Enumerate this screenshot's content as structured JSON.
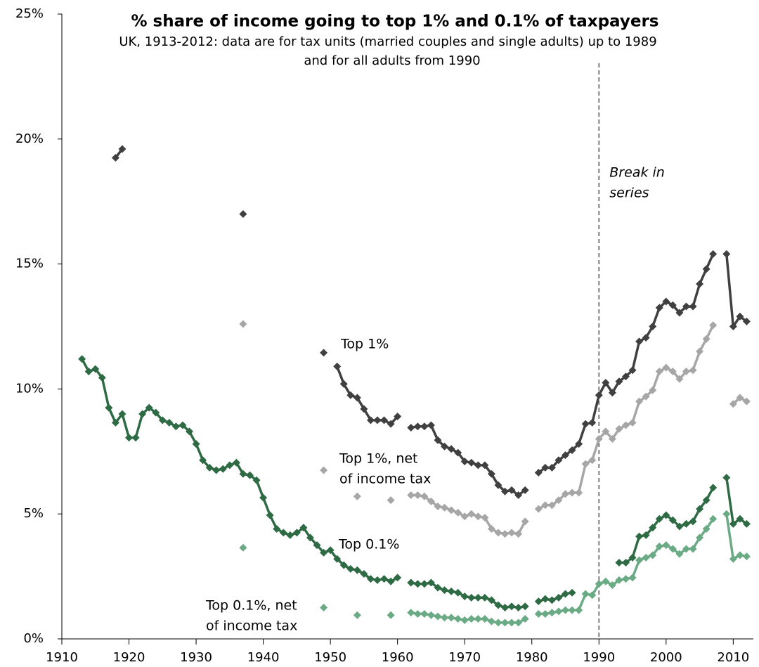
{
  "chart_data": {
    "type": "line",
    "title": "% share of income going to top 1% and 0.1% of taxpayers",
    "subtitle": [
      "UK, 1913-2012: data are for tax units (married couples and single adults) up to 1989",
      "and for all adults from 1990"
    ],
    "x": [
      1913,
      1914,
      1915,
      1916,
      1917,
      1918,
      1919,
      1920,
      1921,
      1922,
      1923,
      1924,
      1925,
      1926,
      1927,
      1928,
      1929,
      1930,
      1931,
      1932,
      1933,
      1934,
      1935,
      1936,
      1937,
      1938,
      1939,
      1940,
      1941,
      1942,
      1943,
      1944,
      1945,
      1946,
      1947,
      1948,
      1949,
      1950,
      1951,
      1952,
      1953,
      1954,
      1955,
      1956,
      1957,
      1958,
      1959,
      1960,
      1961,
      1962,
      1963,
      1964,
      1965,
      1966,
      1967,
      1968,
      1969,
      1970,
      1971,
      1972,
      1973,
      1974,
      1975,
      1976,
      1977,
      1978,
      1979,
      1980,
      1981,
      1982,
      1983,
      1984,
      1985,
      1986,
      1987,
      1988,
      1989,
      1990,
      1991,
      1992,
      1993,
      1994,
      1995,
      1996,
      1997,
      1998,
      1999,
      2000,
      2001,
      2002,
      2003,
      2004,
      2005,
      2006,
      2007,
      2008,
      2009,
      2010,
      2011,
      2012
    ],
    "series": [
      {
        "label": [
          "Top 1%"
        ],
        "color": "#404040",
        "values": [
          null,
          null,
          null,
          null,
          null,
          19.25,
          19.6,
          null,
          null,
          null,
          null,
          null,
          null,
          null,
          null,
          null,
          null,
          null,
          null,
          null,
          null,
          null,
          null,
          null,
          17.0,
          null,
          null,
          null,
          null,
          null,
          null,
          null,
          null,
          null,
          null,
          null,
          11.45,
          null,
          10.9,
          10.2,
          9.75,
          9.65,
          9.2,
          8.75,
          8.75,
          8.75,
          8.6,
          8.9,
          null,
          8.45,
          8.5,
          8.5,
          8.55,
          7.95,
          7.7,
          7.6,
          7.45,
          7.1,
          7.05,
          6.95,
          6.95,
          6.6,
          6.15,
          5.9,
          5.95,
          5.75,
          5.95,
          null,
          6.65,
          6.85,
          6.85,
          7.15,
          7.35,
          7.55,
          7.8,
          8.6,
          8.65,
          9.75,
          10.25,
          9.85,
          10.3,
          10.5,
          10.75,
          11.9,
          12.05,
          12.5,
          13.25,
          13.5,
          13.35,
          13.05,
          13.3,
          13.3,
          14.2,
          14.8,
          15.4,
          null,
          15.4,
          12.5,
          12.9,
          12.7
        ]
      },
      {
        "label": [
          "Top 1%, net",
          "of income tax"
        ],
        "color": "#a6a6a6",
        "values": [
          null,
          null,
          null,
          null,
          null,
          null,
          null,
          null,
          null,
          null,
          null,
          null,
          null,
          null,
          null,
          null,
          null,
          null,
          null,
          null,
          null,
          null,
          null,
          null,
          12.6,
          null,
          null,
          null,
          null,
          null,
          null,
          null,
          null,
          null,
          null,
          null,
          6.75,
          null,
          null,
          null,
          null,
          5.7,
          null,
          null,
          null,
          null,
          5.55,
          null,
          null,
          5.75,
          5.75,
          5.7,
          5.5,
          5.3,
          5.25,
          5.15,
          5.05,
          4.9,
          5.0,
          4.9,
          4.85,
          4.4,
          4.25,
          4.2,
          4.25,
          4.2,
          4.7,
          null,
          5.2,
          5.35,
          5.35,
          5.55,
          5.8,
          5.85,
          5.85,
          7.0,
          7.15,
          8.0,
          8.3,
          8.0,
          8.4,
          8.55,
          8.65,
          9.5,
          9.7,
          9.95,
          10.7,
          10.85,
          10.7,
          10.4,
          10.7,
          10.75,
          11.5,
          12.0,
          12.55,
          null,
          null,
          9.4,
          9.65,
          9.5
        ]
      },
      {
        "label": [
          "Top 0.1%"
        ],
        "color": "#2e6b45",
        "values": [
          11.2,
          10.7,
          10.8,
          10.45,
          9.25,
          8.65,
          9.0,
          8.05,
          8.05,
          9.0,
          9.25,
          9.05,
          8.75,
          8.65,
          8.5,
          8.55,
          8.3,
          7.8,
          7.15,
          6.85,
          6.75,
          6.8,
          6.95,
          7.05,
          6.6,
          6.55,
          6.35,
          5.65,
          4.95,
          4.4,
          4.25,
          4.15,
          4.25,
          4.45,
          4.05,
          3.75,
          3.45,
          3.55,
          3.2,
          2.95,
          2.8,
          2.75,
          2.6,
          2.4,
          2.35,
          2.4,
          2.3,
          2.45,
          null,
          2.25,
          2.2,
          2.2,
          2.25,
          2.05,
          1.95,
          1.9,
          1.85,
          1.7,
          1.65,
          1.65,
          1.65,
          1.55,
          1.35,
          1.25,
          1.3,
          1.25,
          1.3,
          null,
          1.5,
          1.6,
          1.55,
          1.65,
          1.8,
          1.85,
          null,
          null,
          null,
          null,
          null,
          null,
          3.05,
          3.05,
          3.25,
          4.1,
          4.15,
          4.45,
          4.8,
          4.95,
          4.75,
          4.5,
          4.6,
          4.7,
          5.2,
          5.55,
          6.05,
          null,
          6.45,
          4.6,
          4.8,
          4.6
        ]
      },
      {
        "label": [
          "Top 0.1%, net",
          "of income tax"
        ],
        "color": "#6aaa85",
        "values": [
          null,
          null,
          null,
          null,
          null,
          null,
          null,
          null,
          null,
          null,
          null,
          null,
          null,
          null,
          null,
          null,
          null,
          null,
          null,
          null,
          null,
          null,
          null,
          null,
          3.65,
          null,
          null,
          null,
          null,
          null,
          null,
          null,
          null,
          null,
          null,
          null,
          1.25,
          null,
          null,
          null,
          null,
          0.95,
          null,
          null,
          null,
          null,
          0.95,
          null,
          null,
          1.05,
          1.0,
          1.0,
          0.95,
          0.9,
          0.85,
          0.85,
          0.8,
          0.75,
          0.8,
          0.8,
          0.8,
          0.7,
          0.65,
          0.65,
          0.65,
          0.65,
          0.8,
          null,
          1.0,
          1.0,
          1.05,
          1.1,
          1.15,
          1.15,
          1.15,
          1.8,
          1.75,
          2.2,
          2.3,
          2.15,
          2.35,
          2.4,
          2.45,
          3.15,
          3.25,
          3.35,
          3.7,
          3.75,
          3.6,
          3.4,
          3.6,
          3.6,
          4.05,
          4.4,
          4.8,
          null,
          5.0,
          3.2,
          3.35,
          3.3
        ]
      }
    ],
    "xlim": [
      1910,
      2013
    ],
    "xticks": [
      1910,
      1920,
      1930,
      1940,
      1950,
      1960,
      1970,
      1980,
      1990,
      2000,
      2010
    ],
    "ylim": [
      0,
      25
    ],
    "yticks": [
      {
        "value": 0,
        "label": "0%"
      },
      {
        "value": 5,
        "label": "5%"
      },
      {
        "value": 10,
        "label": "10%"
      },
      {
        "value": 15,
        "label": "15%"
      },
      {
        "value": 20,
        "label": "20%"
      },
      {
        "value": 25,
        "label": "25%"
      }
    ],
    "break_x": 1990,
    "break_label": [
      "Break in",
      "series"
    ]
  }
}
